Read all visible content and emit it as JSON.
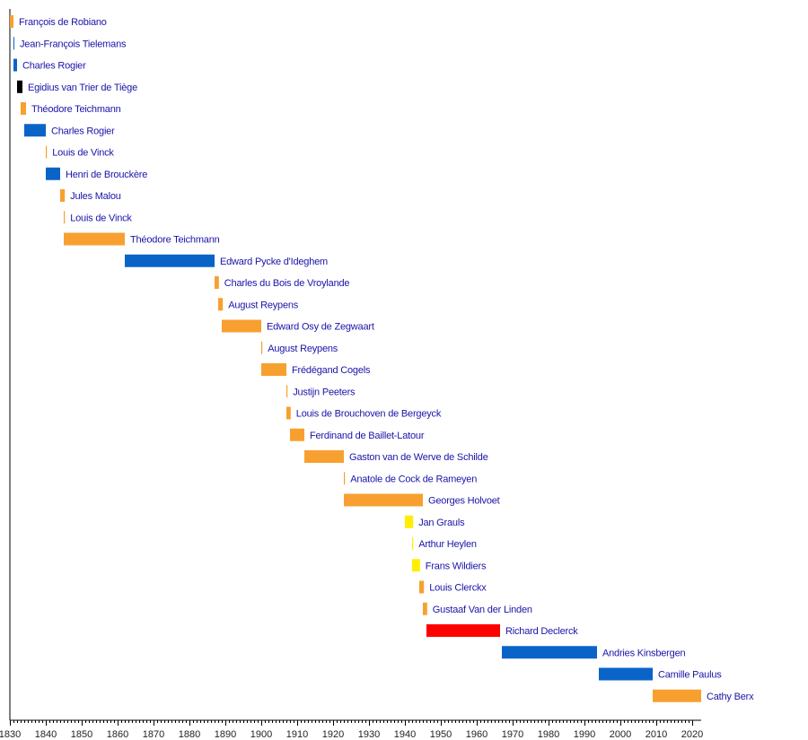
{
  "chart_data": {
    "type": "timeline",
    "title": "",
    "xlabel": "",
    "ylabel": "",
    "xlim": [
      1830,
      2022
    ],
    "x_ticks": [
      "1830",
      "1840",
      "1850",
      "1860",
      "1870",
      "1880",
      "1890",
      "1900",
      "1910",
      "1920",
      "1930",
      "1940",
      "1950",
      "1960",
      "1970",
      "1980",
      "1990",
      "2000",
      "2010",
      "2020"
    ],
    "minor_tick_step_years": 1,
    "grid": false,
    "colors": {
      "orange": "#f7a030",
      "blue": "#0a64c8",
      "black": "#000000",
      "yellow": "#ffee00",
      "red": "#ff0000",
      "label": "#1a14a8"
    },
    "entries": [
      {
        "name": "François de Robiano",
        "start": 1830,
        "end": 1831,
        "color": "orange"
      },
      {
        "name": "Jean-François Tielemans",
        "start": 1831,
        "end": 1831.2,
        "color": "blue"
      },
      {
        "name": "Charles Rogier",
        "start": 1831,
        "end": 1832,
        "color": "blue"
      },
      {
        "name": "Egidius van Trier de Tiège",
        "start": 1832,
        "end": 1833.5,
        "color": "black"
      },
      {
        "name": "Théodore Teichmann",
        "start": 1833,
        "end": 1834.5,
        "color": "orange"
      },
      {
        "name": "Charles Rogier",
        "start": 1834,
        "end": 1840,
        "color": "blue"
      },
      {
        "name": "Louis de Vinck",
        "start": 1840,
        "end": 1840.3,
        "color": "orange"
      },
      {
        "name": "Henri de Brouckère",
        "start": 1840,
        "end": 1844,
        "color": "blue"
      },
      {
        "name": "Jules Malou",
        "start": 1844,
        "end": 1845.3,
        "color": "orange"
      },
      {
        "name": "Louis de Vinck",
        "start": 1845,
        "end": 1845.3,
        "color": "orange"
      },
      {
        "name": "Théodore Teichmann",
        "start": 1845,
        "end": 1862,
        "color": "orange"
      },
      {
        "name": "Edward Pycke d'Ideghem",
        "start": 1862,
        "end": 1887,
        "color": "blue"
      },
      {
        "name": "Charles du Bois de Vroylande",
        "start": 1887,
        "end": 1888.2,
        "color": "orange"
      },
      {
        "name": "August Reypens",
        "start": 1888,
        "end": 1889.3,
        "color": "orange"
      },
      {
        "name": "Edward Osy de Zegwaart",
        "start": 1889,
        "end": 1900,
        "color": "orange"
      },
      {
        "name": "August Reypens",
        "start": 1900,
        "end": 1900.3,
        "color": "orange"
      },
      {
        "name": "Frédégand Cogels",
        "start": 1900,
        "end": 1907,
        "color": "orange"
      },
      {
        "name": "Justijn Peeters",
        "start": 1907,
        "end": 1907.3,
        "color": "orange"
      },
      {
        "name": "Louis de Brouchoven de Bergeyck",
        "start": 1907,
        "end": 1908.2,
        "color": "orange"
      },
      {
        "name": "Ferdinand de Baillet-Latour",
        "start": 1908,
        "end": 1912,
        "color": "orange"
      },
      {
        "name": "Gaston van de Werve de Schilde",
        "start": 1912,
        "end": 1923,
        "color": "orange"
      },
      {
        "name": "Anatole de Cock de Rameyen",
        "start": 1923,
        "end": 1923.3,
        "color": "orange"
      },
      {
        "name": "Georges Holvoet",
        "start": 1923,
        "end": 1945,
        "color": "orange"
      },
      {
        "name": "Jan Grauls",
        "start": 1940,
        "end": 1942.3,
        "color": "yellow"
      },
      {
        "name": "Arthur Heylen",
        "start": 1942,
        "end": 1942.3,
        "color": "yellow"
      },
      {
        "name": "Frans Wildiers",
        "start": 1942,
        "end": 1944.2,
        "color": "yellow"
      },
      {
        "name": "Louis Clerckx",
        "start": 1944,
        "end": 1945.3,
        "color": "orange"
      },
      {
        "name": "Gustaaf Van der Linden",
        "start": 1945,
        "end": 1946.2,
        "color": "orange"
      },
      {
        "name": "Richard Declerck",
        "start": 1946,
        "end": 1966.5,
        "color": "red"
      },
      {
        "name": "Andries Kinsbergen",
        "start": 1967,
        "end": 1993.5,
        "color": "blue"
      },
      {
        "name": "Camille Paulus",
        "start": 1994,
        "end": 2009,
        "color": "blue"
      },
      {
        "name": "Cathy Berx",
        "start": 2009,
        "end": 2022.5,
        "color": "orange"
      }
    ]
  }
}
